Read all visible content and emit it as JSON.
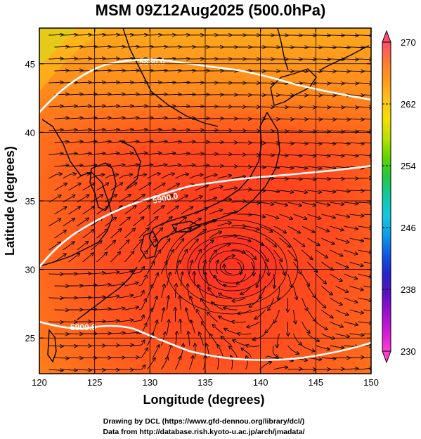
{
  "title": "MSM 09Z12Aug2025 (500.0hPa)",
  "credits": {
    "line1": "Drawing by DCL (https://www.gfd-dennou.org/library/dcl/)",
    "line2": "Data from http://database.rish.kyoto-u.ac.jp/arch/jmadata/"
  },
  "map": {
    "xlabel": "Longitude (degrees)",
    "ylabel": "Latitude  (degrees)",
    "xlim": [
      120,
      150
    ],
    "ylim": [
      22.4,
      47.6
    ],
    "x_ticks": [
      "120",
      "125",
      "130",
      "135",
      "140",
      "145",
      "150"
    ],
    "y_ticks": [
      "25",
      "30",
      "35",
      "40",
      "45"
    ],
    "contour_labels": [
      "5880.0",
      "5900.0",
      "5900.0"
    ],
    "contour_color": "#ffffff",
    "coastline_color": "#000000"
  },
  "colorbar": {
    "min": 230,
    "max": 270,
    "tick_labels": [
      "270",
      "262",
      "254",
      "246",
      "238",
      "230"
    ],
    "colors": [
      "#ff4d6d",
      "#ff7a33",
      "#ff9a1a",
      "#ffc21a",
      "#f2e000",
      "#b8e000",
      "#5fd400",
      "#1fc845",
      "#10c8a6",
      "#12c8e0",
      "#0e9be8",
      "#1057e6",
      "#2424c8",
      "#5a10c0",
      "#9a10d0",
      "#d01cd8",
      "#ff3fd0"
    ]
  }
}
